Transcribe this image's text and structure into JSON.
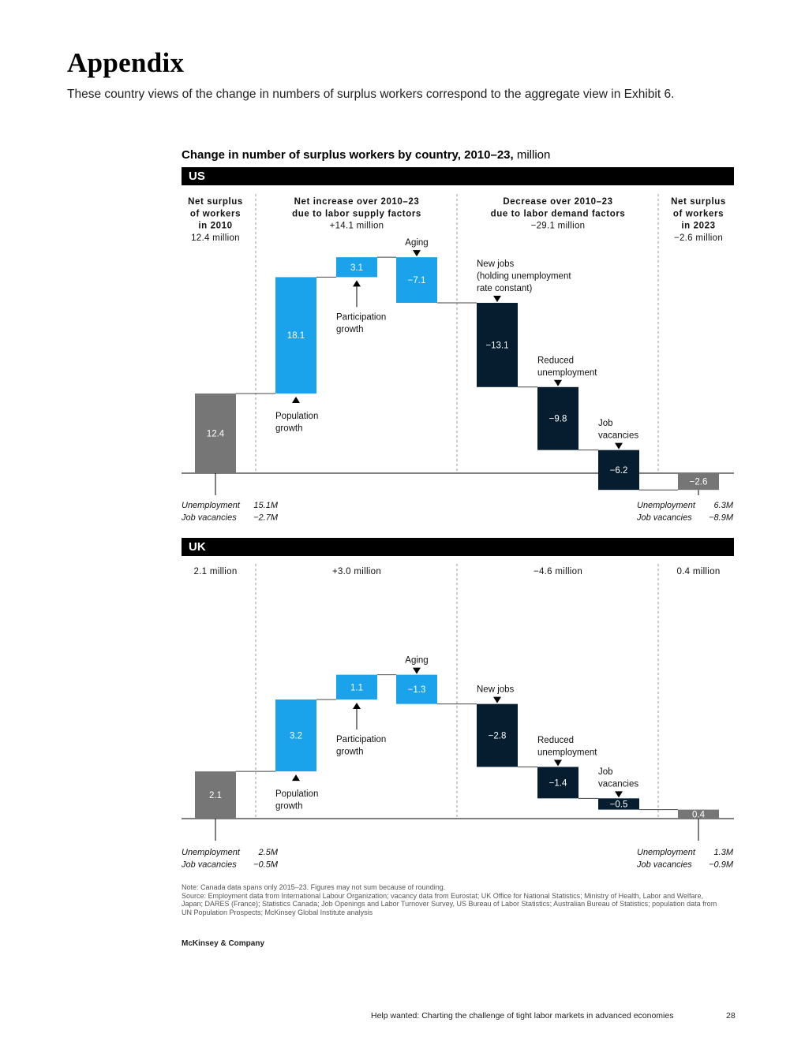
{
  "page": {
    "title": "Appendix",
    "subtitle": "These country views of the change in numbers of surplus workers correspond to the aggregate view in Exhibit 6."
  },
  "chart_title": "Change in number of surplus workers by country, 2010–23,",
  "chart_unit": "million",
  "colors": {
    "baseline": "#767676",
    "supply": "#1aa3ea",
    "demand": "#061d30",
    "text_light": "#ffffff"
  },
  "chart_data": [
    {
      "type": "waterfall",
      "country": "US",
      "section_headers": [
        [
          "Net surplus",
          "of workers",
          "in 2010",
          "12.4 million"
        ],
        [
          "Net increase over 2010–23",
          "due to labor supply factors",
          "+14.1 million"
        ],
        [
          "Decrease over 2010–23",
          "due to labor demand factors",
          "−29.1 million"
        ],
        [
          "Net surplus",
          "of workers",
          "in 2023",
          "−2.6 million"
        ]
      ],
      "bars": [
        {
          "name": "start-2010",
          "label": "12.4",
          "start": 0,
          "delta": 12.4,
          "group": "baseline",
          "annotation": []
        },
        {
          "name": "population-growth",
          "label": "18.1",
          "start": 12.4,
          "delta": 18.1,
          "group": "supply",
          "annotation": [
            "Population",
            "growth"
          ]
        },
        {
          "name": "participation-growth",
          "label": "3.1",
          "start": 30.5,
          "delta": 3.1,
          "group": "supply",
          "annotation": [
            "Participation",
            "growth"
          ]
        },
        {
          "name": "aging",
          "label": "−7.1",
          "start": 33.6,
          "delta": -7.1,
          "group": "supply",
          "annotation": [
            "Aging"
          ]
        },
        {
          "name": "new-jobs",
          "label": "−13.1",
          "start": 26.5,
          "delta": -13.1,
          "group": "demand",
          "annotation": [
            "New jobs",
            "(holding unemployment",
            "rate constant)"
          ]
        },
        {
          "name": "reduced-unemployment",
          "label": "−9.8",
          "start": 13.4,
          "delta": -9.8,
          "group": "demand",
          "annotation": [
            "Reduced",
            "unemployment"
          ]
        },
        {
          "name": "job-vacancies",
          "label": "−6.2",
          "start": 3.6,
          "delta": -6.2,
          "group": "demand",
          "annotation": [
            "Job",
            "vacancies"
          ]
        },
        {
          "name": "end-2023",
          "label": "−2.6",
          "start": 0,
          "delta": -2.6,
          "group": "baseline",
          "annotation": []
        }
      ],
      "start_breakdown": {
        "labels": [
          "Unemployment",
          "Job vacancies"
        ],
        "values": [
          "15.1M",
          "−2.7M"
        ]
      },
      "end_breakdown": {
        "labels": [
          "Unemployment",
          "Job vacancies"
        ],
        "values": [
          "6.3M",
          "−8.9M"
        ]
      }
    },
    {
      "type": "waterfall",
      "country": "UK",
      "section_headers": [
        [
          "2.1 million"
        ],
        [
          "+3.0 million"
        ],
        [
          "−4.6 million"
        ],
        [
          "0.4 million"
        ]
      ],
      "bars": [
        {
          "name": "start-2010",
          "label": "2.1",
          "start": 0,
          "delta": 2.1,
          "group": "baseline",
          "annotation": []
        },
        {
          "name": "population-growth",
          "label": "3.2",
          "start": 2.1,
          "delta": 3.2,
          "group": "supply",
          "annotation": [
            "Population",
            "growth"
          ]
        },
        {
          "name": "participation-growth",
          "label": "1.1",
          "start": 5.3,
          "delta": 1.1,
          "group": "supply",
          "annotation": [
            "Participation",
            "growth"
          ]
        },
        {
          "name": "aging",
          "label": "−1.3",
          "start": 6.4,
          "delta": -1.3,
          "group": "supply",
          "annotation": [
            "Aging"
          ]
        },
        {
          "name": "new-jobs",
          "label": "−2.8",
          "start": 5.1,
          "delta": -2.8,
          "group": "demand",
          "annotation": [
            "New jobs"
          ]
        },
        {
          "name": "reduced-unemployment",
          "label": "−1.4",
          "start": 2.3,
          "delta": -1.4,
          "group": "demand",
          "annotation": [
            "Reduced",
            "unemployment"
          ]
        },
        {
          "name": "job-vacancies",
          "label": "−0.5",
          "start": 0.9,
          "delta": -0.5,
          "group": "demand",
          "annotation": [
            "Job",
            "vacancies"
          ]
        },
        {
          "name": "end-2023",
          "label": "0.4",
          "start": 0,
          "delta": 0.4,
          "group": "baseline",
          "annotation": []
        }
      ],
      "start_breakdown": {
        "labels": [
          "Unemployment",
          "Job vacancies"
        ],
        "values": [
          "2.5M",
          "−0.5M"
        ]
      },
      "end_breakdown": {
        "labels": [
          "Unemployment",
          "Job vacancies"
        ],
        "values": [
          "1.3M",
          "−0.9M"
        ]
      }
    }
  ],
  "footnote": {
    "note": "Note: Canada data spans only 2015–23. Figures may not sum because of rounding.",
    "source": "Source: Employment data from International Labour Organization; vacancy data from Eurostat; UK Office for National Statistics; Ministry of Health, Labor and Welfare, Japan; DARES (France); Statistics Canada; Job Openings and Labor Turnover Survey, US Bureau of Labor Statistics; Australian Bureau of Statistics; population data from UN Population Prospects; McKinsey Global Institute analysis"
  },
  "brand": "McKinsey & Company",
  "footer": {
    "running_title": "Help wanted: Charting the challenge of tight labor markets in advanced economies",
    "page_number": "28"
  }
}
